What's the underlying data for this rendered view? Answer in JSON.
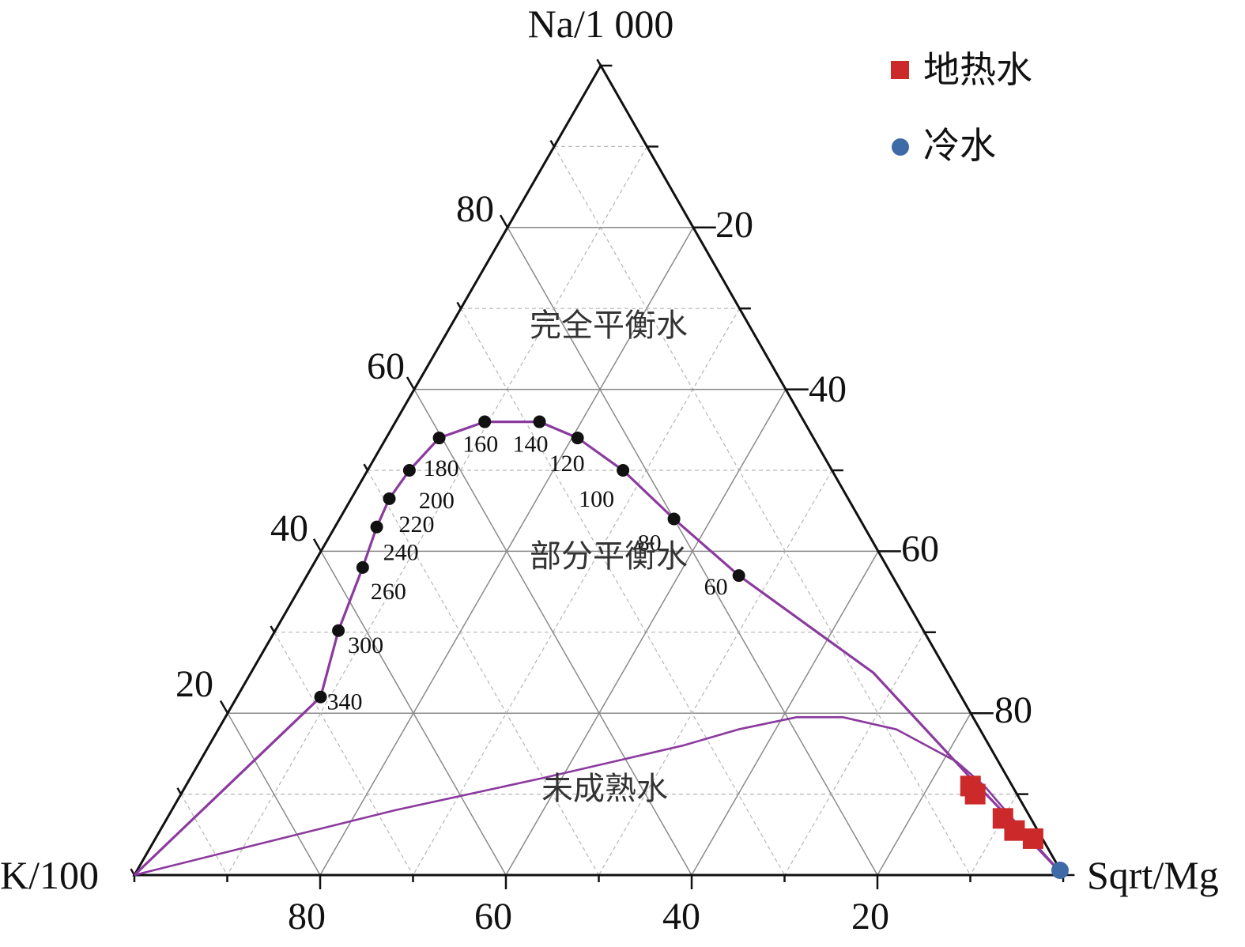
{
  "chart_data": {
    "type": "ternary",
    "axes": {
      "top": "Na/1 000",
      "left": "K/100",
      "right": "Sqrt/Mg"
    },
    "ticks": {
      "left": [
        "20",
        "40",
        "60",
        "80"
      ],
      "right": [
        "20",
        "40",
        "60",
        "80"
      ],
      "bottom": [
        "80",
        "60",
        "40",
        "20"
      ]
    },
    "grid": true,
    "regions": [
      {
        "label": "完全平衡水"
      },
      {
        "label": "部分平衡水"
      },
      {
        "label": "未成熟水"
      }
    ],
    "full_equilibrium_line": {
      "color": "#8b3a9e",
      "temperature_points": [
        {
          "t": "340",
          "na": 22.0,
          "k": 69.0,
          "mg": 9.0
        },
        {
          "t": "300",
          "na": 30.2,
          "k": 63.0,
          "mg": 6.8
        },
        {
          "t": "260",
          "na": 38.0,
          "k": 56.5,
          "mg": 5.5
        },
        {
          "t": "240",
          "na": 43.0,
          "k": 52.5,
          "mg": 4.5
        },
        {
          "t": "220",
          "na": 46.5,
          "k": 49.4,
          "mg": 4.1
        },
        {
          "t": "200",
          "na": 50.0,
          "k": 45.5,
          "mg": 4.5
        },
        {
          "t": "180",
          "na": 54.0,
          "k": 40.3,
          "mg": 5.7
        },
        {
          "t": "160",
          "na": 56.0,
          "k": 34.4,
          "mg": 9.6
        },
        {
          "t": "140",
          "na": 56.0,
          "k": 28.5,
          "mg": 15.5
        },
        {
          "t": "120",
          "na": 54.0,
          "k": 25.4,
          "mg": 20.6
        },
        {
          "t": "100",
          "na": 50.0,
          "k": 22.5,
          "mg": 27.5
        },
        {
          "t": "80",
          "na": 44.0,
          "k": 20.0,
          "mg": 36.0
        },
        {
          "t": "60",
          "na": 37.0,
          "k": 16.5,
          "mg": 46.5
        }
      ]
    },
    "immature_boundary_line": {
      "color": "#8b3a9e"
    },
    "series": [
      {
        "name": "地热水",
        "marker": "square",
        "color": "#cc2a2a",
        "points": [
          {
            "na": 11.0,
            "k": 4.5,
            "mg": 84.5
          },
          {
            "na": 10.0,
            "k": 4.5,
            "mg": 85.5
          },
          {
            "na": 7.0,
            "k": 3.0,
            "mg": 90.0
          },
          {
            "na": 5.5,
            "k": 2.5,
            "mg": 92.0
          },
          {
            "na": 4.5,
            "k": 1.0,
            "mg": 94.5
          }
        ]
      },
      {
        "name": "冷水",
        "marker": "circle",
        "color": "#3f6aa8",
        "points": [
          {
            "na": 0.0,
            "k": 0.0,
            "mg": 100.0
          }
        ]
      }
    ],
    "legend_position": "top-right"
  }
}
